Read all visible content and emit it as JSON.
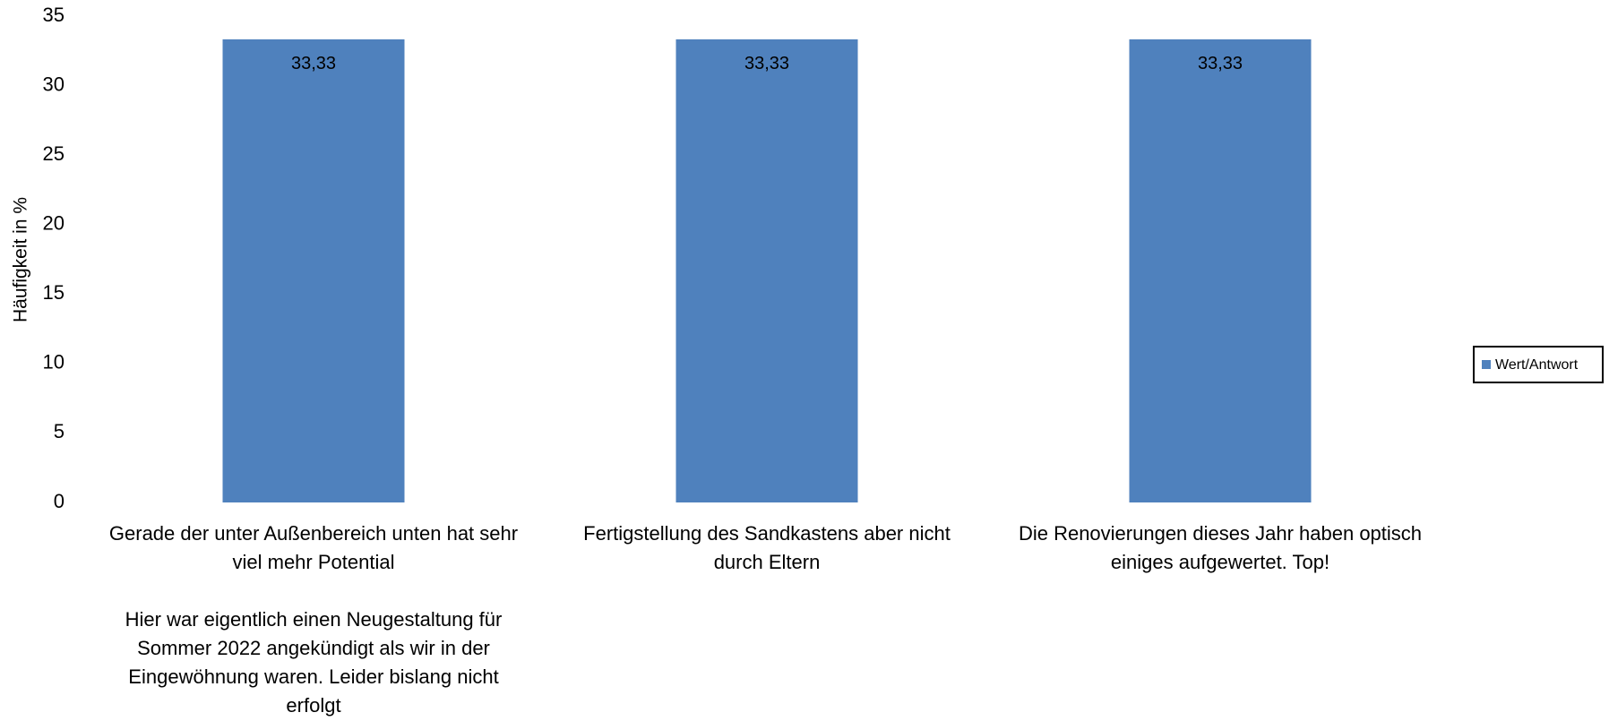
{
  "chart_data": {
    "type": "bar",
    "y_label": "Häufigkeit in %",
    "categories": [
      "Gerade der unter Außenbereich unten hat sehr viel mehr Potential\n\nHier war eigentlich einen Neugestaltung für Sommer 2022 angekündigt als wir in der Eingewöhnung waren. Leider bislang nicht erfolgt",
      "Fertigstellung des Sandkastens aber nicht durch Eltern",
      "Die Renovierungen dieses Jahr haben optisch einiges aufgewertet. Top!"
    ],
    "series": [
      {
        "name": "Wert/Antwort",
        "color": "#4f81bd",
        "values": [
          33.33,
          33.33,
          33.33
        ],
        "value_labels": [
          "33,33",
          "33,33",
          "33,33"
        ]
      }
    ],
    "ylim": [
      0,
      35
    ],
    "yticks": [
      0,
      5,
      10,
      15,
      20,
      25,
      30,
      35
    ],
    "grid": false,
    "legend": "right"
  }
}
